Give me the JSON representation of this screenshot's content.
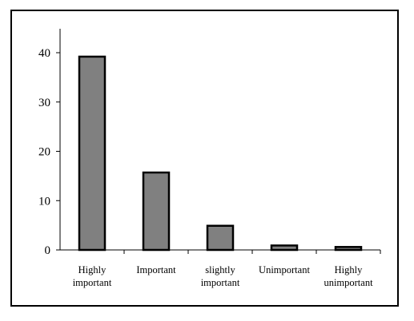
{
  "chart_data": {
    "type": "bar",
    "categories": [
      [
        "Highly",
        "important"
      ],
      [
        "Important"
      ],
      [
        "slightly",
        "important"
      ],
      [
        "Unimportant"
      ],
      [
        "Highly",
        "unimportant"
      ]
    ],
    "values": [
      39.2,
      15.7,
      4.9,
      0.9,
      0.6
    ],
    "yticks": [
      "0",
      "10",
      "20",
      "30",
      "40"
    ],
    "ylim": [
      0,
      40
    ],
    "grid": false,
    "bar_color": "#808080",
    "bar_stroke": "#000000",
    "title": "",
    "xlabel": "",
    "ylabel": ""
  }
}
